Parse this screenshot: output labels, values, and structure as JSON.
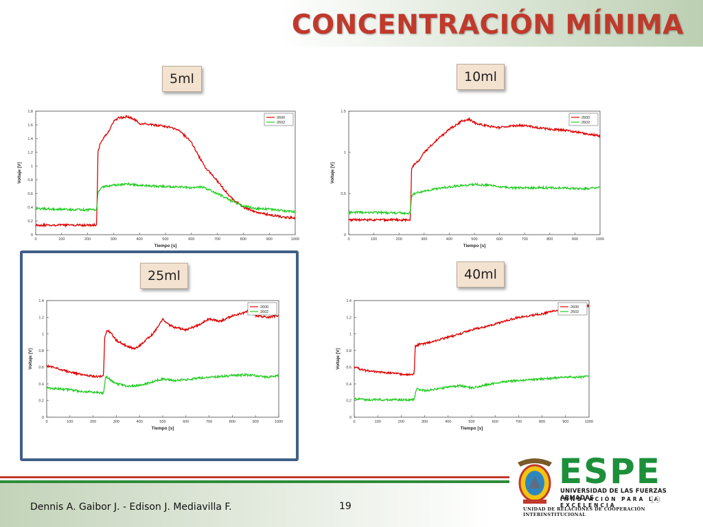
{
  "title": "CONCENTRACIÓN MÍNIMA",
  "footer": {
    "authors": "Dennis A. Gaibor J.  -  Edison J. Mediavilla F.",
    "page": "19",
    "page_ghost": "19"
  },
  "logo": {
    "wordmark": "ESPE",
    "university": "UNIVERSIDAD DE LAS FUERZAS ARMADAS",
    "motto": "INNOVACIÓN PARA LA EXCELENCIA",
    "unit": "UNIDAD DE RELACIONES DE COOPERACIÓN INTERINSTITUCIONAL"
  },
  "colors": {
    "title": "#c0392b",
    "series_2600": "#dd0000",
    "series_2602": "#22cc22",
    "frame": "#3f5f86",
    "espe_green": "#1d8f3a"
  },
  "chart_data": [
    {
      "type": "line",
      "label": "5ml",
      "xlabel": "Tiempo [s]",
      "ylabel": "Voltaje [V]",
      "xlim": [
        0,
        1000
      ],
      "ylim": [
        0,
        1.8
      ],
      "xticks": [
        0,
        100,
        200,
        300,
        400,
        500,
        600,
        700,
        800,
        900,
        1000
      ],
      "xtick_labels": [
        "0",
        "100",
        "200",
        "300",
        "400",
        "500",
        "600",
        "700",
        "800",
        "900",
        "1000"
      ],
      "yticks": [
        0,
        0.2,
        0.4,
        0.6,
        0.8,
        1,
        1.2,
        1.4,
        1.6,
        1.8
      ],
      "ytick_labels": [
        "0",
        "0.2",
        "0.4",
        "0.6",
        "0.8",
        "1",
        "1.2",
        "1.4",
        "1.6",
        "1.8"
      ],
      "legend_position": "top-right",
      "series": [
        {
          "name": "2600",
          "x": [
            0,
            100,
            235,
            240,
            250,
            260,
            280,
            300,
            320,
            350,
            380,
            400,
            450,
            500,
            550,
            600,
            620,
            650,
            700,
            750,
            800,
            850,
            900,
            950,
            1000
          ],
          "y": [
            0.14,
            0.14,
            0.14,
            1.2,
            1.35,
            1.4,
            1.5,
            1.65,
            1.7,
            1.72,
            1.68,
            1.62,
            1.6,
            1.58,
            1.53,
            1.35,
            1.2,
            1.0,
            0.78,
            0.55,
            0.4,
            0.33,
            0.29,
            0.26,
            0.24
          ]
        },
        {
          "name": "2602",
          "x": [
            0,
            100,
            235,
            240,
            260,
            300,
            350,
            400,
            450,
            500,
            550,
            600,
            640,
            700,
            750,
            800,
            850,
            900,
            950,
            1000
          ],
          "y": [
            0.38,
            0.37,
            0.36,
            0.62,
            0.7,
            0.72,
            0.74,
            0.72,
            0.71,
            0.7,
            0.7,
            0.68,
            0.7,
            0.6,
            0.5,
            0.42,
            0.38,
            0.37,
            0.35,
            0.33
          ]
        }
      ]
    },
    {
      "type": "line",
      "label": "10ml",
      "xlabel": "Tiempo [s]",
      "ylabel": "Voltaje [V]",
      "xlim": [
        0,
        1000
      ],
      "ylim": [
        0,
        1.5
      ],
      "xticks": [
        0,
        100,
        200,
        300,
        400,
        500,
        600,
        700,
        800,
        900,
        1000
      ],
      "xtick_labels": [
        "0",
        "100",
        "200",
        "300",
        "400",
        "500",
        "600",
        "700",
        "800",
        "900",
        "1000"
      ],
      "yticks": [
        0,
        0.5,
        1,
        1.5
      ],
      "ytick_labels": [
        "0",
        "0.5",
        "1",
        "1.5"
      ],
      "legend_position": "top-right",
      "series": [
        {
          "name": "2600",
          "x": [
            0,
            100,
            245,
            250,
            260,
            280,
            300,
            350,
            400,
            450,
            480,
            500,
            550,
            600,
            650,
            700,
            750,
            800,
            850,
            900,
            950,
            1000
          ],
          "y": [
            0.18,
            0.18,
            0.18,
            0.8,
            0.85,
            0.9,
            1.0,
            1.15,
            1.28,
            1.38,
            1.4,
            1.36,
            1.32,
            1.3,
            1.32,
            1.33,
            1.3,
            1.28,
            1.27,
            1.25,
            1.22,
            1.2
          ]
        },
        {
          "name": "2602",
          "x": [
            0,
            100,
            245,
            250,
            260,
            300,
            350,
            400,
            450,
            500,
            550,
            600,
            650,
            700,
            750,
            800,
            850,
            900,
            950,
            1000
          ],
          "y": [
            0.27,
            0.27,
            0.26,
            0.46,
            0.5,
            0.53,
            0.56,
            0.58,
            0.6,
            0.61,
            0.6,
            0.58,
            0.57,
            0.57,
            0.57,
            0.57,
            0.57,
            0.56,
            0.56,
            0.57
          ]
        }
      ]
    },
    {
      "type": "line",
      "label": "25ml",
      "xlabel": "Tiempo [s]",
      "ylabel": "Voltaje [V]",
      "xlim": [
        0,
        1000
      ],
      "ylim": [
        0,
        1.4
      ],
      "xticks": [
        0,
        100,
        200,
        300,
        400,
        500,
        600,
        700,
        800,
        900,
        1000
      ],
      "xtick_labels": [
        "0",
        "100",
        "200",
        "300",
        "400",
        "500",
        "600",
        "700",
        "800",
        "900",
        "1000"
      ],
      "yticks": [
        0,
        0.2,
        0.4,
        0.6,
        0.8,
        1,
        1.2,
        1.4
      ],
      "ytick_labels": [
        "0",
        "0.2",
        "0.4",
        "0.6",
        "0.8",
        "1",
        "1.2",
        "1.4"
      ],
      "legend_position": "top-right",
      "series": [
        {
          "name": "2600",
          "x": [
            0,
            50,
            100,
            150,
            200,
            245,
            250,
            260,
            280,
            300,
            350,
            380,
            400,
            450,
            480,
            500,
            520,
            550,
            600,
            650,
            700,
            750,
            800,
            850,
            880,
            900,
            950,
            1000
          ],
          "y": [
            0.62,
            0.58,
            0.54,
            0.51,
            0.49,
            0.49,
            0.95,
            1.05,
            1.0,
            0.92,
            0.85,
            0.82,
            0.86,
            0.98,
            1.08,
            1.18,
            1.12,
            1.08,
            1.05,
            1.1,
            1.18,
            1.15,
            1.22,
            1.25,
            1.3,
            1.22,
            1.2,
            1.22
          ]
        },
        {
          "name": "2602",
          "x": [
            0,
            50,
            100,
            150,
            200,
            245,
            255,
            270,
            300,
            350,
            400,
            450,
            500,
            550,
            600,
            650,
            700,
            750,
            800,
            850,
            900,
            950,
            1000
          ],
          "y": [
            0.35,
            0.34,
            0.33,
            0.31,
            0.3,
            0.29,
            0.49,
            0.46,
            0.4,
            0.37,
            0.38,
            0.42,
            0.46,
            0.44,
            0.45,
            0.47,
            0.48,
            0.49,
            0.5,
            0.51,
            0.5,
            0.48,
            0.5
          ]
        }
      ]
    },
    {
      "type": "line",
      "label": "40ml",
      "xlabel": "Tiempo [s]",
      "ylabel": "Voltaje [V]",
      "xlim": [
        0,
        1000
      ],
      "ylim": [
        0,
        1.4
      ],
      "xticks": [
        0,
        100,
        200,
        300,
        400,
        500,
        600,
        700,
        800,
        900,
        1000
      ],
      "xtick_labels": [
        "0",
        "100",
        "200",
        "300",
        "400",
        "500",
        "600",
        "700",
        "800",
        "900",
        "1000"
      ],
      "yticks": [
        0,
        0.2,
        0.4,
        0.6,
        0.8,
        1,
        1.2,
        1.4
      ],
      "ytick_labels": [
        "0",
        "0.2",
        "0.4",
        "0.6",
        "0.8",
        "1",
        "1.2",
        "1.4"
      ],
      "legend_position": "top-right",
      "series": [
        {
          "name": "2600",
          "x": [
            0,
            50,
            100,
            150,
            200,
            255,
            260,
            280,
            300,
            350,
            400,
            450,
            500,
            550,
            600,
            650,
            700,
            750,
            800,
            850,
            900,
            950,
            1000
          ],
          "y": [
            0.6,
            0.56,
            0.54,
            0.53,
            0.52,
            0.51,
            0.85,
            0.88,
            0.88,
            0.92,
            0.96,
            1.0,
            1.05,
            1.08,
            1.12,
            1.16,
            1.2,
            1.22,
            1.24,
            1.27,
            1.3,
            1.32,
            1.34
          ]
        },
        {
          "name": "2602",
          "x": [
            0,
            50,
            100,
            150,
            200,
            255,
            265,
            300,
            350,
            400,
            450,
            500,
            550,
            600,
            650,
            700,
            750,
            800,
            850,
            900,
            950,
            1000
          ],
          "y": [
            0.22,
            0.21,
            0.21,
            0.21,
            0.21,
            0.21,
            0.34,
            0.32,
            0.34,
            0.36,
            0.38,
            0.35,
            0.38,
            0.41,
            0.43,
            0.44,
            0.45,
            0.46,
            0.47,
            0.48,
            0.48,
            0.49
          ]
        }
      ]
    }
  ]
}
